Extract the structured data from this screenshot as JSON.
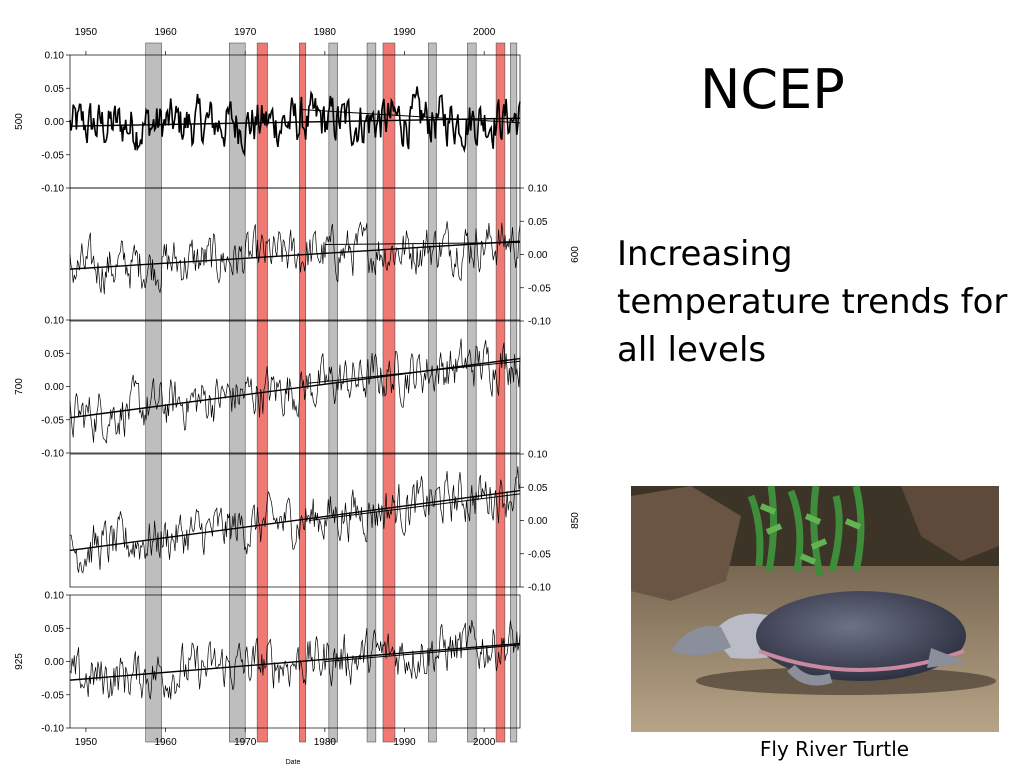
{
  "slide": {
    "title": "NCEP",
    "body_text": "Increasing temperature trends for all levels",
    "photo_caption": "Fly River Turtle"
  },
  "chart_data": {
    "type": "line",
    "xlabel": "Date",
    "x_range": [
      1948,
      2004.5
    ],
    "x_ticks": [
      1950,
      1960,
      1970,
      1980,
      1990,
      2000
    ],
    "x_tick_labels": [
      "1950",
      "1960",
      "1970",
      "1980",
      "1990",
      "2000"
    ],
    "y_range": [
      -0.1,
      0.1
    ],
    "y_ticks": [
      0.1,
      0.05,
      0.0,
      -0.05,
      -0.1
    ],
    "y_tick_labels": [
      "0.10",
      "0.05",
      "0.00",
      "-0.05",
      "-0.10"
    ],
    "grid": false,
    "shaded_periods": [
      {
        "start": 1957.5,
        "end": 1959.5,
        "color": "#bebebe"
      },
      {
        "start": 1968.0,
        "end": 1970.0,
        "color": "#bebebe"
      },
      {
        "start": 1971.5,
        "end": 1972.8,
        "color": "#f07a73"
      },
      {
        "start": 1976.8,
        "end": 1977.6,
        "color": "#f07a73"
      },
      {
        "start": 1980.5,
        "end": 1981.6,
        "color": "#bebebe"
      },
      {
        "start": 1985.3,
        "end": 1986.4,
        "color": "#bebebe"
      },
      {
        "start": 1987.3,
        "end": 1988.8,
        "color": "#f07a73"
      },
      {
        "start": 1993.0,
        "end": 1994.0,
        "color": "#bebebe"
      },
      {
        "start": 1997.9,
        "end": 1999.0,
        "color": "#bebebe"
      },
      {
        "start": 2001.5,
        "end": 2002.6,
        "color": "#f07a73"
      },
      {
        "start": 2003.3,
        "end": 2004.1,
        "color": "#bebebe"
      }
    ],
    "panels": [
      {
        "level": "500",
        "label_side": "left",
        "trend": [
          [
            1948,
            -0.007
          ],
          [
            2004.5,
            0.005
          ]
        ],
        "trend2": [
          [
            1977,
            0.018
          ],
          [
            2004.5,
            -0.002
          ]
        ],
        "heavy": true
      },
      {
        "level": "600",
        "label_side": "right",
        "trend": [
          [
            1948,
            -0.022
          ],
          [
            2004.5,
            0.02
          ]
        ],
        "trend2": [
          [
            1980,
            0.015
          ],
          [
            2004.5,
            0.018
          ]
        ],
        "heavy": false
      },
      {
        "level": "700",
        "label_side": "left",
        "trend": [
          [
            1948,
            -0.047
          ],
          [
            2004.5,
            0.042
          ]
        ],
        "trend2": [
          [
            1978,
            0.005
          ],
          [
            2004.5,
            0.038
          ]
        ],
        "heavy": false
      },
      {
        "level": "850",
        "label_side": "right",
        "trend": [
          [
            1948,
            -0.045
          ],
          [
            2004.5,
            0.045
          ]
        ],
        "trend2": [
          [
            1978,
            0.0
          ],
          [
            2004.5,
            0.04
          ]
        ],
        "heavy": false
      },
      {
        "level": "925",
        "label_side": "left",
        "trend": [
          [
            1948,
            -0.028
          ],
          [
            2004.5,
            0.027
          ]
        ],
        "trend2": [
          [
            1980,
            0.0
          ],
          [
            2004.5,
            0.025
          ]
        ],
        "heavy": false
      }
    ]
  }
}
